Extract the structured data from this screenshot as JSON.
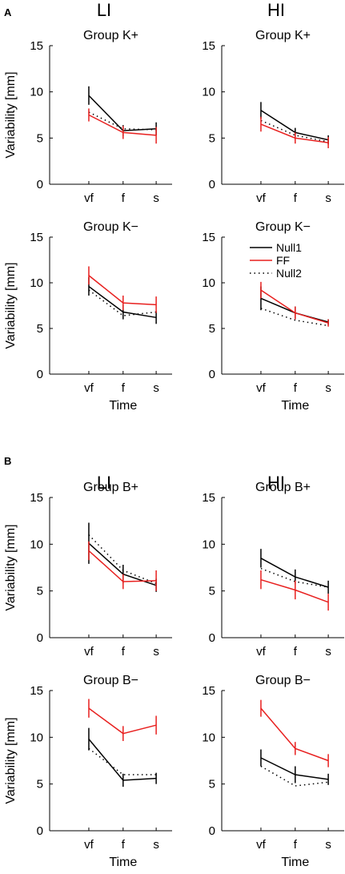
{
  "figure": {
    "panel_labels": [
      "A",
      "B"
    ],
    "column_titles": [
      "LI",
      "HI"
    ],
    "xlabel": "Time",
    "ylabel": "Variability [mm]",
    "legend": [
      "Null1",
      "FF",
      "Null2"
    ],
    "colors": {
      "Null1": "#000000",
      "FF": "#e8201f",
      "Null2": "#000000"
    }
  },
  "chart_data": [
    {
      "type": "line",
      "panel": "A",
      "column": "LI",
      "title": "Group K+",
      "categories": [
        "vf",
        "f",
        "s"
      ],
      "xlabel": "",
      "ylabel": "Variability [mm]",
      "ylim": [
        0,
        15
      ],
      "yticks": [
        0,
        5,
        10,
        15
      ],
      "series": [
        {
          "name": "Null1",
          "values": [
            9.6,
            5.8,
            6.0
          ],
          "err": [
            1.0,
            0.6,
            0.7
          ]
        },
        {
          "name": "FF",
          "values": [
            7.5,
            5.6,
            5.3
          ],
          "err": [
            0.7,
            0.7,
            0.9
          ]
        },
        {
          "name": "Null2",
          "values": [
            7.8,
            6.0,
            5.9
          ],
          "err": [
            0,
            0,
            0
          ]
        }
      ]
    },
    {
      "type": "line",
      "panel": "A",
      "column": "HI",
      "title": "Group K+",
      "categories": [
        "vf",
        "f",
        "s"
      ],
      "xlabel": "",
      "ylabel": "",
      "ylim": [
        0,
        15
      ],
      "yticks": [
        0,
        5,
        10,
        15
      ],
      "series": [
        {
          "name": "Null1",
          "values": [
            8.0,
            5.6,
            4.8
          ],
          "err": [
            0.9,
            0.5,
            0.5
          ]
        },
        {
          "name": "FF",
          "values": [
            6.5,
            5.0,
            4.5
          ],
          "err": [
            0.8,
            0.6,
            0.6
          ]
        },
        {
          "name": "Null2",
          "values": [
            6.9,
            5.3,
            4.6
          ],
          "err": [
            0,
            0,
            0
          ]
        }
      ]
    },
    {
      "type": "line",
      "panel": "A",
      "column": "LI",
      "title": "Group K−",
      "categories": [
        "vf",
        "f",
        "s"
      ],
      "xlabel": "Time",
      "ylabel": "Variability [mm]",
      "ylim": [
        0,
        15
      ],
      "yticks": [
        0,
        5,
        10,
        15
      ],
      "series": [
        {
          "name": "Null1",
          "values": [
            9.6,
            6.8,
            6.2
          ],
          "err": [
            1.0,
            0.8,
            0.7
          ]
        },
        {
          "name": "FF",
          "values": [
            10.8,
            7.8,
            7.6
          ],
          "err": [
            1.0,
            0.8,
            0.9
          ]
        },
        {
          "name": "Null2",
          "values": [
            9.2,
            6.4,
            6.8
          ],
          "err": [
            0,
            0,
            0
          ]
        }
      ]
    },
    {
      "type": "line",
      "panel": "A",
      "column": "HI",
      "title": "Group K−",
      "categories": [
        "vf",
        "f",
        "s"
      ],
      "xlabel": "Time",
      "ylabel": "",
      "ylim": [
        0,
        15
      ],
      "yticks": [
        0,
        5,
        10,
        15
      ],
      "series": [
        {
          "name": "Null1",
          "values": [
            8.3,
            6.7,
            5.7
          ],
          "err": [
            1.3,
            0.7,
            0.3
          ]
        },
        {
          "name": "FF",
          "values": [
            9.2,
            6.7,
            5.6
          ],
          "err": [
            0.9,
            0.7,
            0.4
          ]
        },
        {
          "name": "Null2",
          "values": [
            7.2,
            5.9,
            5.3
          ],
          "err": [
            0,
            0,
            0
          ]
        }
      ]
    },
    {
      "type": "line",
      "panel": "B",
      "column": "LI",
      "title": "Group B+",
      "categories": [
        "vf",
        "f",
        "s"
      ],
      "xlabel": "",
      "ylabel": "Variability [mm]",
      "ylim": [
        0,
        15
      ],
      "yticks": [
        0,
        5,
        10,
        15
      ],
      "series": [
        {
          "name": "Null1",
          "values": [
            10.1,
            6.8,
            5.6
          ],
          "err": [
            2.2,
            1.0,
            0.7
          ]
        },
        {
          "name": "FF",
          "values": [
            9.3,
            6.0,
            6.1
          ],
          "err": [
            1.0,
            0.8,
            1.1
          ]
        },
        {
          "name": "Null2",
          "values": [
            11.0,
            7.2,
            5.8
          ],
          "err": [
            0,
            0,
            0
          ]
        }
      ]
    },
    {
      "type": "line",
      "panel": "B",
      "column": "HI",
      "title": "Group B+",
      "categories": [
        "vf",
        "f",
        "s"
      ],
      "xlabel": "",
      "ylabel": "",
      "ylim": [
        0,
        15
      ],
      "yticks": [
        0,
        5,
        10,
        15
      ],
      "series": [
        {
          "name": "Null1",
          "values": [
            8.5,
            6.5,
            5.4
          ],
          "err": [
            1.0,
            0.8,
            0.7
          ]
        },
        {
          "name": "FF",
          "values": [
            6.2,
            5.1,
            3.8
          ],
          "err": [
            1.0,
            1.0,
            0.9
          ]
        },
        {
          "name": "Null2",
          "values": [
            7.4,
            6.0,
            5.4
          ],
          "err": [
            0,
            0,
            0
          ]
        }
      ]
    },
    {
      "type": "line",
      "panel": "B",
      "column": "LI",
      "title": "Group B−",
      "categories": [
        "vf",
        "f",
        "s"
      ],
      "xlabel": "Time",
      "ylabel": "Variability [mm]",
      "ylim": [
        0,
        15
      ],
      "yticks": [
        0,
        5,
        10,
        15
      ],
      "series": [
        {
          "name": "Null1",
          "values": [
            9.8,
            5.4,
            5.6
          ],
          "err": [
            1.2,
            0.7,
            0.6
          ]
        },
        {
          "name": "FF",
          "values": [
            13.1,
            10.4,
            11.3
          ],
          "err": [
            1.0,
            0.8,
            1.0
          ]
        },
        {
          "name": "Null2",
          "values": [
            8.8,
            6.0,
            6.0
          ],
          "err": [
            0,
            0,
            0
          ]
        }
      ]
    },
    {
      "type": "line",
      "panel": "B",
      "column": "HI",
      "title": "Group B−",
      "categories": [
        "vf",
        "f",
        "s"
      ],
      "xlabel": "Time",
      "ylabel": "",
      "ylim": [
        0,
        15
      ],
      "yticks": [
        0,
        5,
        10,
        15
      ],
      "series": [
        {
          "name": "Null1",
          "values": [
            7.8,
            6.0,
            5.5
          ],
          "err": [
            0.9,
            0.9,
            0.6
          ]
        },
        {
          "name": "FF",
          "values": [
            13.1,
            8.8,
            7.5
          ],
          "err": [
            0.9,
            0.7,
            0.7
          ]
        },
        {
          "name": "Null2",
          "values": [
            6.9,
            4.8,
            5.2
          ],
          "err": [
            0,
            0,
            0
          ]
        }
      ]
    }
  ]
}
